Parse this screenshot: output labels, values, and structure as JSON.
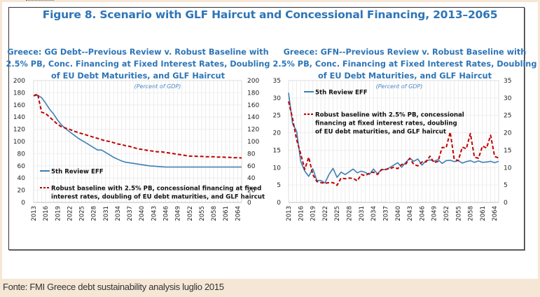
{
  "figure_title": "Figure 8. Scenario with GLF Haircut and Concessional Financing, 2013–2065",
  "source": "Fonte: FMI Greece debt sustainability analysis luglio 2015",
  "colors": {
    "title": "#2e75b6",
    "series_previous": "#3d7fb3",
    "series_robust": "#c00000",
    "background": "#f6e6d6"
  },
  "chart_data": [
    {
      "type": "line",
      "title_lines": [
        "Greece: GG Debt--Previous Review v. Robust Baseline with",
        "2.5% PB, Conc. Financing at Fixed Interest Rates, Doubling",
        "of EU Debt Maturities, and GLF Haircut"
      ],
      "subtitle": "(Percent of GDP)",
      "xlabel": "",
      "ylabel": "",
      "ylim": [
        0,
        200
      ],
      "yticks": [
        0,
        20,
        40,
        60,
        80,
        100,
        120,
        140,
        160,
        180,
        200
      ],
      "xlim": [
        2013,
        2065
      ],
      "xtick_labels": [
        "2013",
        "2016",
        "2019",
        "2022",
        "2025",
        "2028",
        "2031",
        "2034",
        "2037",
        "2040",
        "2043",
        "2046",
        "2049",
        "2052",
        "2055",
        "2058",
        "2061",
        "2064"
      ],
      "grid": true,
      "legend_position": "bottom-left",
      "series": [
        {
          "name": "5th Review EFF",
          "style": "solid",
          "x": [
            2013,
            2014,
            2015,
            2016,
            2017,
            2018,
            2019,
            2020,
            2021,
            2022,
            2023,
            2024,
            2025,
            2026,
            2027,
            2028,
            2029,
            2030,
            2031,
            2032,
            2033,
            2034,
            2035,
            2036,
            2037,
            2038,
            2039,
            2040,
            2041,
            2042,
            2043,
            2044,
            2045,
            2046,
            2047,
            2048,
            2049,
            2050,
            2055,
            2060,
            2065
          ],
          "values": [
            175,
            176,
            172,
            163,
            153,
            145,
            135,
            127,
            121,
            116,
            111,
            106,
            102,
            98,
            94,
            90,
            86,
            86,
            82,
            78,
            74,
            71,
            68,
            66,
            65,
            64,
            63,
            62,
            61,
            60,
            59.5,
            59,
            58.5,
            58,
            58,
            58,
            58,
            58,
            58,
            58,
            58
          ]
        },
        {
          "name": "Robust baseline with 2.5% PB, concessional financing at fixed interest rates, doubling of EU debt maturities, and GLF haircut",
          "style": "dashed",
          "x": [
            2013,
            2014,
            2015,
            2016,
            2017,
            2018,
            2019,
            2020,
            2021,
            2022,
            2023,
            2024,
            2025,
            2026,
            2027,
            2028,
            2029,
            2030,
            2031,
            2032,
            2033,
            2034,
            2035,
            2036,
            2037,
            2038,
            2039,
            2040,
            2041,
            2042,
            2043,
            2044,
            2045,
            2046,
            2047,
            2048,
            2049,
            2050,
            2051,
            2052,
            2053,
            2054,
            2055,
            2056,
            2057,
            2058,
            2059,
            2060,
            2061,
            2062,
            2063,
            2064,
            2065
          ],
          "values": [
            175,
            178,
            148,
            146,
            140,
            134,
            128,
            124,
            122,
            120,
            117,
            115,
            113,
            111,
            109,
            107,
            105,
            103,
            101,
            100,
            98,
            96,
            95,
            93,
            92,
            90,
            88,
            87,
            86,
            85,
            84,
            83,
            83,
            82,
            81,
            80,
            79,
            78,
            77,
            76,
            76,
            75.5,
            75.5,
            75,
            75,
            75,
            74.5,
            74.5,
            74,
            74,
            73.5,
            73.5,
            73
          ]
        }
      ]
    },
    {
      "type": "line",
      "title_lines": [
        "Greece: GFN--Previous Review v. Robust Baseline with",
        "2.5% PB, Conc. Financing at Fixed Interest Rates, Doubling",
        "of EU Debt Maturities, and GLF Haircut"
      ],
      "subtitle": "(Percent of GDP)",
      "xlabel": "",
      "ylabel": "",
      "ylim": [
        0,
        35
      ],
      "yticks": [
        0,
        5,
        10,
        15,
        20,
        25,
        30,
        35
      ],
      "xlim": [
        2013,
        2065
      ],
      "xtick_labels": [
        "2013",
        "2016",
        "2019",
        "2022",
        "2025",
        "2028",
        "2031",
        "2034",
        "2037",
        "2040",
        "2043",
        "2046",
        "2049",
        "2052",
        "2055",
        "2058",
        "2061",
        "2064"
      ],
      "grid": true,
      "legend_position": "top-left",
      "series": [
        {
          "name": "5th Review EFF",
          "style": "solid",
          "x": [
            2013,
            2014,
            2015,
            2016,
            2017,
            2018,
            2019,
            2020,
            2021,
            2022,
            2023,
            2024,
            2025,
            2026,
            2027,
            2028,
            2029,
            2030,
            2031,
            2032,
            2033,
            2034,
            2035,
            2036,
            2037,
            2038,
            2039,
            2040,
            2041,
            2042,
            2043,
            2044,
            2045,
            2046,
            2047,
            2048,
            2049,
            2050,
            2051,
            2052,
            2053,
            2054,
            2055,
            2056,
            2057,
            2058,
            2059,
            2060,
            2061,
            2062,
            2063,
            2064,
            2065
          ],
          "values": [
            31.5,
            22.5,
            20.5,
            11.8,
            9,
            7.5,
            9.7,
            6.3,
            6.3,
            5.6,
            8,
            9.8,
            7.2,
            8.7,
            8,
            8.8,
            9.6,
            8.5,
            9,
            8.6,
            8,
            9.6,
            8.2,
            9.5,
            9.4,
            10,
            10.7,
            11.4,
            10.1,
            11.5,
            12.7,
            11.8,
            12.5,
            10.7,
            12,
            12.2,
            11.8,
            12.3,
            11.2,
            12,
            12.1,
            11.7,
            12,
            11.3,
            11.7,
            12,
            11.5,
            11.9,
            11.5,
            11.6,
            11.8,
            11.4,
            11.8
          ]
        },
        {
          "name": "Robust baseline with 2.5% PB, concessional financing at fixed interest rates, doubling of EU debt maturities, and GLF haircut",
          "style": "dashed",
          "x": [
            2013,
            2014,
            2015,
            2016,
            2017,
            2018,
            2019,
            2020,
            2021,
            2022,
            2023,
            2024,
            2025,
            2026,
            2027,
            2028,
            2029,
            2030,
            2031,
            2032,
            2033,
            2034,
            2035,
            2036,
            2037,
            2038,
            2039,
            2040,
            2041,
            2042,
            2043,
            2044,
            2045,
            2046,
            2047,
            2048,
            2049,
            2050,
            2051,
            2052,
            2053,
            2054,
            2055,
            2056,
            2057,
            2058,
            2059,
            2060,
            2061,
            2062,
            2063,
            2064,
            2065
          ],
          "values": [
            29,
            24,
            18,
            14,
            9.5,
            13,
            8,
            6,
            5.7,
            5.5,
            5.7,
            5.7,
            4.9,
            7,
            6.8,
            7,
            6.9,
            6.2,
            8,
            7.7,
            8.4,
            8.7,
            8,
            9.4,
            9.5,
            9.7,
            10.1,
            9.7,
            10.9,
            11,
            12.7,
            10.9,
            10.5,
            11.6,
            11.6,
            13.3,
            11.4,
            11.8,
            15.8,
            15.7,
            20.2,
            12.4,
            12,
            15.9,
            15.4,
            19.8,
            13,
            12.7,
            16.2,
            15.6,
            19.3,
            13.2,
            12.8
          ]
        }
      ]
    }
  ]
}
